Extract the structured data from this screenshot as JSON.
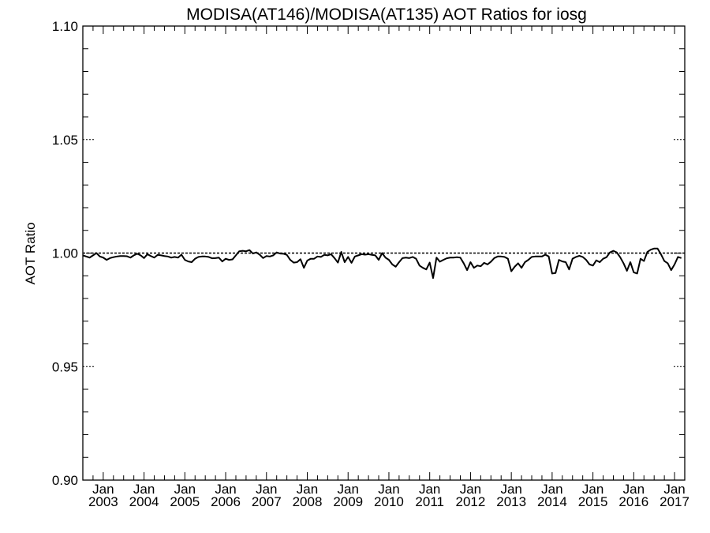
{
  "chart_data": {
    "type": "line",
    "title": "MODISA(AT146)/MODISA(AT135)  AOT Ratios for iosg",
    "xlabel": "",
    "ylabel": "AOT Ratio",
    "ylim": [
      0.9,
      1.1
    ],
    "yticks": [
      "0.90",
      "0.95",
      "1.00",
      "1.05",
      "1.10"
    ],
    "xlim": [
      "2002-07",
      "2017-04"
    ],
    "xticks": [
      {
        "line1": "Jan",
        "line2": "2003",
        "date": "2003-01"
      },
      {
        "line1": "Jan",
        "line2": "2004",
        "date": "2004-01"
      },
      {
        "line1": "Jan",
        "line2": "2005",
        "date": "2005-01"
      },
      {
        "line1": "Jan",
        "line2": "2006",
        "date": "2006-01"
      },
      {
        "line1": "Jan",
        "line2": "2007",
        "date": "2007-01"
      },
      {
        "line1": "Jan",
        "line2": "2008",
        "date": "2008-01"
      },
      {
        "line1": "Jan",
        "line2": "2009",
        "date": "2009-01"
      },
      {
        "line1": "Jan",
        "line2": "2010",
        "date": "2010-01"
      },
      {
        "line1": "Jan",
        "line2": "2011",
        "date": "2011-01"
      },
      {
        "line1": "Jan",
        "line2": "2012",
        "date": "2012-01"
      },
      {
        "line1": "Jan",
        "line2": "2013",
        "date": "2013-01"
      },
      {
        "line1": "Jan",
        "line2": "2014",
        "date": "2014-01"
      },
      {
        "line1": "Jan",
        "line2": "2015",
        "date": "2015-01"
      },
      {
        "line1": "Jan",
        "line2": "2016",
        "date": "2016-01"
      },
      {
        "line1": "Jan",
        "line2": "2017",
        "date": "2017-01"
      }
    ],
    "reference_line": 1.0,
    "grid": false,
    "series": [
      {
        "x": [
          "2002-07",
          "2002-08",
          "2002-09",
          "2002-10",
          "2002-11",
          "2002-12",
          "2003-01",
          "2003-02",
          "2003-03",
          "2003-04",
          "2003-05",
          "2003-06",
          "2003-07",
          "2003-08",
          "2003-09",
          "2003-10",
          "2003-11",
          "2003-12",
          "2004-01",
          "2004-02",
          "2004-03",
          "2004-04",
          "2004-05",
          "2004-06",
          "2004-07",
          "2004-08",
          "2004-09",
          "2004-10",
          "2004-11",
          "2004-12",
          "2005-01",
          "2005-02",
          "2005-03",
          "2005-04",
          "2005-05",
          "2005-06",
          "2005-07",
          "2005-08",
          "2005-09",
          "2005-10",
          "2005-11",
          "2005-12",
          "2006-01",
          "2006-02",
          "2006-03",
          "2006-04",
          "2006-05",
          "2006-06",
          "2006-07",
          "2006-08",
          "2006-09",
          "2006-10",
          "2006-11",
          "2006-12",
          "2007-01",
          "2007-02",
          "2007-03",
          "2007-04",
          "2007-05",
          "2007-06",
          "2007-07",
          "2007-08",
          "2007-09",
          "2007-10",
          "2007-11",
          "2007-12",
          "2008-01",
          "2008-02",
          "2008-03",
          "2008-04",
          "2008-05",
          "2008-06",
          "2008-07",
          "2008-08",
          "2008-09",
          "2008-10",
          "2008-11",
          "2008-12",
          "2009-01",
          "2009-02",
          "2009-03",
          "2009-04",
          "2009-05",
          "2009-06",
          "2009-07",
          "2009-08",
          "2009-09",
          "2009-10",
          "2009-11",
          "2009-12",
          "2010-01",
          "2010-02",
          "2010-03",
          "2010-04",
          "2010-05",
          "2010-06",
          "2010-07",
          "2010-08",
          "2010-09",
          "2010-10",
          "2010-11",
          "2010-12",
          "2011-01",
          "2011-02",
          "2011-03",
          "2011-04",
          "2011-05",
          "2011-06",
          "2011-07",
          "2011-08",
          "2011-09",
          "2011-10",
          "2011-11",
          "2011-12",
          "2012-01",
          "2012-02",
          "2012-03",
          "2012-04",
          "2012-05",
          "2012-06",
          "2012-07",
          "2012-08",
          "2012-09",
          "2012-10",
          "2012-11",
          "2012-12",
          "2013-01",
          "2013-02",
          "2013-03",
          "2013-04",
          "2013-05",
          "2013-06",
          "2013-07",
          "2013-08",
          "2013-09",
          "2013-10",
          "2013-11",
          "2013-12",
          "2014-01",
          "2014-02",
          "2014-03",
          "2014-04",
          "2014-05",
          "2014-06",
          "2014-07",
          "2014-08",
          "2014-09",
          "2014-10",
          "2014-11",
          "2014-12",
          "2015-01",
          "2015-02",
          "2015-03",
          "2015-04",
          "2015-05",
          "2015-06",
          "2015-07",
          "2015-08",
          "2015-09",
          "2015-10",
          "2015-11",
          "2015-12",
          "2016-01",
          "2016-02",
          "2016-03",
          "2016-04",
          "2016-05",
          "2016-06",
          "2016-07",
          "2016-08",
          "2016-09",
          "2016-10",
          "2016-11",
          "2016-12",
          "2017-01",
          "2017-02",
          "2017-03"
        ],
        "values": [
          0.999,
          0.9985,
          0.998,
          0.999,
          1.0,
          0.9985,
          0.998,
          0.997,
          0.9978,
          0.9982,
          0.9985,
          0.9987,
          0.9987,
          0.9986,
          0.998,
          0.999,
          0.9997,
          0.999,
          0.9978,
          0.9995,
          0.9987,
          0.998,
          0.9992,
          0.999,
          0.9987,
          0.9985,
          0.998,
          0.9983,
          0.998,
          0.9993,
          0.997,
          0.9963,
          0.996,
          0.9975,
          0.9983,
          0.9985,
          0.9985,
          0.9983,
          0.9977,
          0.9978,
          0.998,
          0.9963,
          0.9975,
          0.997,
          0.9972,
          0.999,
          1.0008,
          1.001,
          1.0008,
          1.0013,
          0.9998,
          1.0003,
          0.9993,
          0.9978,
          0.9987,
          0.9985,
          0.999,
          1.0003,
          0.9998,
          0.9997,
          0.9992,
          0.997,
          0.9958,
          0.996,
          0.9973,
          0.9935,
          0.9967,
          0.9975,
          0.9975,
          0.9985,
          0.9983,
          0.9992,
          0.999,
          0.9995,
          0.9978,
          0.9958,
          1.0005,
          0.996,
          0.9983,
          0.9957,
          0.9985,
          0.999,
          0.9995,
          0.9993,
          0.9995,
          0.9992,
          0.999,
          0.997,
          1.0,
          0.998,
          0.997,
          0.995,
          0.994,
          0.996,
          0.9978,
          0.998,
          0.9978,
          0.9983,
          0.9975,
          0.9945,
          0.9935,
          0.9928,
          0.9958,
          0.989,
          0.998,
          0.9962,
          0.997,
          0.9977,
          0.998,
          0.998,
          0.9982,
          0.998,
          0.9955,
          0.9925,
          0.996,
          0.9935,
          0.9945,
          0.9942,
          0.9957,
          0.995,
          0.9962,
          0.9978,
          0.9985,
          0.9985,
          0.9983,
          0.9975,
          0.992,
          0.994,
          0.9955,
          0.9935,
          0.996,
          0.997,
          0.9983,
          0.9985,
          0.9985,
          0.9985,
          0.9993,
          0.9985,
          0.991,
          0.9912,
          0.997,
          0.9963,
          0.996,
          0.9928,
          0.9975,
          0.9983,
          0.9988,
          0.9983,
          0.997,
          0.995,
          0.9945,
          0.9968,
          0.996,
          0.9975,
          0.9982,
          1.0003,
          1.001,
          1.0003,
          0.9982,
          0.9955,
          0.9922,
          0.996,
          0.9915,
          0.991,
          0.9975,
          0.9965,
          1.0005,
          1.0015,
          1.002,
          1.002,
          0.9995,
          0.9965,
          0.9955,
          0.9925,
          0.995,
          0.9983,
          0.9978
        ]
      }
    ]
  }
}
